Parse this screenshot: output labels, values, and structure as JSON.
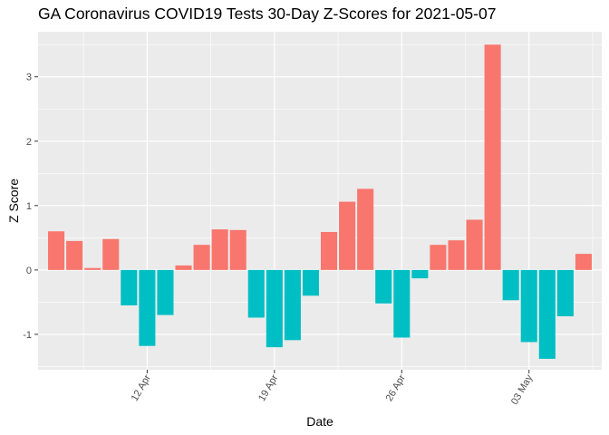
{
  "chart_data": {
    "type": "bar",
    "title": "GA Coronavirus COVID19 Tests 30-Day Z-Scores for 2021-05-07",
    "xlabel": "Date",
    "ylabel": "Z Score",
    "x": [
      "2021-04-07",
      "2021-04-08",
      "2021-04-09",
      "2021-04-10",
      "2021-04-11",
      "2021-04-12",
      "2021-04-13",
      "2021-04-14",
      "2021-04-15",
      "2021-04-16",
      "2021-04-17",
      "2021-04-18",
      "2021-04-19",
      "2021-04-20",
      "2021-04-21",
      "2021-04-22",
      "2021-04-23",
      "2021-04-24",
      "2021-04-25",
      "2021-04-26",
      "2021-04-27",
      "2021-04-28",
      "2021-04-29",
      "2021-04-30",
      "2021-05-01",
      "2021-05-02",
      "2021-05-03",
      "2021-05-04",
      "2021-05-05",
      "2021-05-06"
    ],
    "values": [
      0.6,
      0.45,
      0.03,
      0.48,
      -0.55,
      -1.18,
      -0.7,
      0.07,
      0.39,
      0.63,
      0.62,
      -0.74,
      -1.2,
      -1.09,
      -0.4,
      0.59,
      1.06,
      1.26,
      -0.52,
      -1.05,
      -0.13,
      0.39,
      0.46,
      0.78,
      3.5,
      -0.47,
      -1.12,
      -1.38,
      -0.72,
      0.25
    ],
    "ylim": [
      -1.55,
      3.7
    ],
    "xlim": [
      "2021-04-06",
      "2021-05-07"
    ],
    "y_ticks": [
      -1,
      0,
      1,
      2,
      3
    ],
    "x_ticks": [
      {
        "date": "2021-04-12",
        "label": "12 Apr"
      },
      {
        "date": "2021-04-19",
        "label": "19 Apr"
      },
      {
        "date": "2021-04-26",
        "label": "26 Apr"
      },
      {
        "date": "2021-05-03",
        "label": "03 May"
      }
    ],
    "colors": {
      "positive": "#F8766D",
      "negative": "#00BFC4",
      "panel": "#EBEBEB",
      "grid": "#ffffff"
    },
    "grid": true,
    "legend": "none"
  }
}
